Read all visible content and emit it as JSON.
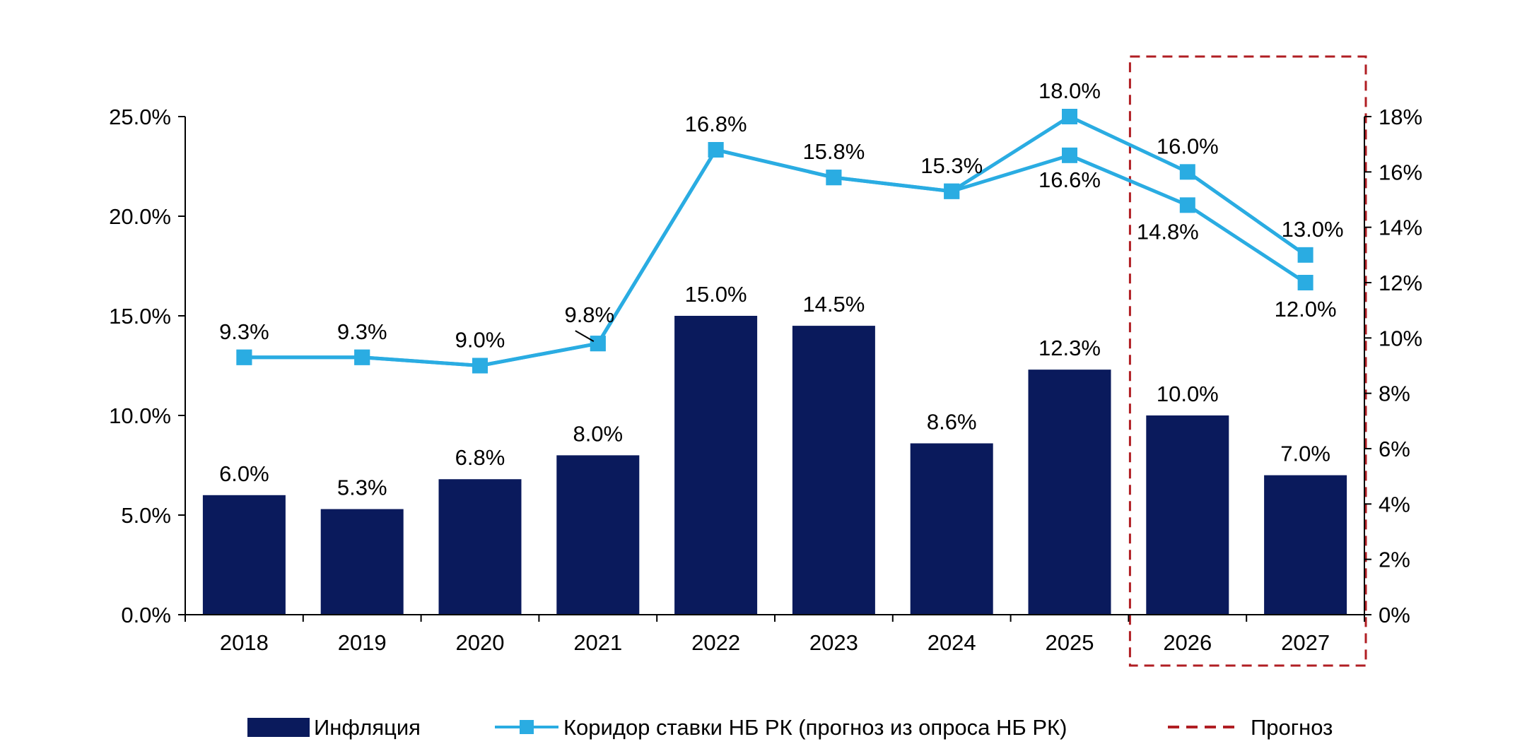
{
  "chart_data": {
    "type": "bar",
    "title": "",
    "categories": [
      "2018",
      "2019",
      "2020",
      "2021",
      "2022",
      "2023",
      "2024",
      "2025",
      "2026",
      "2027"
    ],
    "inflation": {
      "name": "Инфляция",
      "axis": "left",
      "values": [
        6.0,
        5.3,
        6.8,
        8.0,
        15.0,
        14.5,
        8.6,
        12.3,
        10.0,
        7.0
      ],
      "labels": [
        "6.0%",
        "5.3%",
        "6.8%",
        "8.0%",
        "15.0%",
        "14.5%",
        "8.6%",
        "12.3%",
        "10.0%",
        "7.0%"
      ]
    },
    "corridor": {
      "name": "Коридор ставки НБ РК (прогноз из опроса НБ РК)",
      "axis": "right",
      "lower": {
        "values": [
          9.3,
          9.3,
          9.0,
          9.8,
          16.8,
          15.8,
          15.3,
          16.6,
          14.8,
          12.0
        ],
        "labels": [
          "",
          "",
          "",
          "",
          "",
          "",
          "",
          "16.6%",
          "14.8%",
          "12.0%"
        ]
      },
      "upper": {
        "values": [
          9.3,
          9.3,
          9.0,
          9.8,
          16.8,
          15.8,
          15.3,
          18.0,
          16.0,
          13.0
        ],
        "labels": [
          "9.3%",
          "9.3%",
          "9.0%",
          "9.8%",
          "16.8%",
          "15.8%",
          "15.3%",
          "18.0%",
          "16.0%",
          "13.0%"
        ]
      }
    },
    "forecast": {
      "name": "Прогноз",
      "categories": [
        "2026",
        "2027"
      ]
    },
    "left_axis": {
      "ylim": [
        0,
        25
      ],
      "ticks": [
        0,
        5,
        10,
        15,
        20,
        25
      ],
      "tick_labels": [
        "0.0%",
        "5.0%",
        "10.0%",
        "15.0%",
        "20.0%",
        "25.0%"
      ]
    },
    "right_axis": {
      "ylim": [
        0,
        18
      ],
      "ticks": [
        0,
        2,
        4,
        6,
        8,
        10,
        12,
        14,
        16,
        18
      ],
      "tick_labels": [
        "0%",
        "2%",
        "4%",
        "6%",
        "8%",
        "10%",
        "12%",
        "14%",
        "16%",
        "18%"
      ]
    },
    "xlabel": "",
    "ylabel": "",
    "grid": false,
    "legend_position": "bottom",
    "colors": {
      "bar": "#0a1a5c",
      "line": "#2aace2",
      "forecast": "#b01e23",
      "axis": "#000000"
    }
  }
}
